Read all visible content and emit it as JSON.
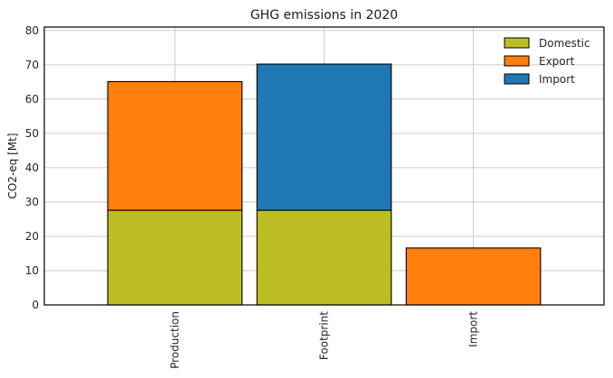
{
  "chart_data": {
    "type": "bar",
    "stacked": true,
    "title": "GHG emissions in 2020",
    "xlabel": "",
    "ylabel": "CO2-eq [Mt]",
    "ylim": [
      0,
      81
    ],
    "yticks": [
      0,
      10,
      20,
      30,
      40,
      50,
      60,
      70,
      80
    ],
    "grid": true,
    "legend_position": "top-right",
    "categories": [
      "Production",
      "Footprint",
      "Import"
    ],
    "series": [
      {
        "name": "Domestic",
        "color": "#bcbd22",
        "values": [
          27.6,
          27.6,
          0
        ]
      },
      {
        "name": "Export",
        "color": "#ff7f0e",
        "values": [
          37.5,
          0,
          16.6
        ]
      },
      {
        "name": "Import",
        "color": "#1f77b4",
        "values": [
          0,
          42.6,
          0
        ]
      }
    ]
  }
}
